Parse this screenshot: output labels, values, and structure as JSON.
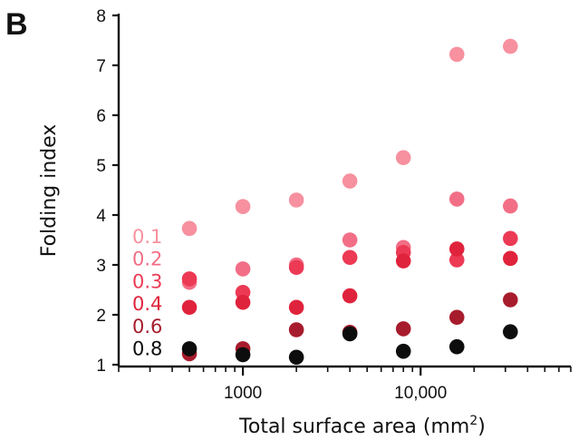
{
  "panel_label": "B",
  "chart_data": {
    "type": "scatter",
    "xlabel": "Total surface area (mm",
    "xlabel_superscript": "2",
    "xlabel_close": ")",
    "ylabel": "Folding index",
    "xscale": "log",
    "xlim": [
      200,
      70000
    ],
    "ylim": [
      1,
      8
    ],
    "x_ticks": [
      {
        "value": 1000,
        "label": "1000"
      },
      {
        "value": 10000,
        "label": "10,000"
      }
    ],
    "y_ticks": [
      {
        "value": 1,
        "label": "1"
      },
      {
        "value": 2,
        "label": "2"
      },
      {
        "value": 3,
        "label": "3"
      },
      {
        "value": 4,
        "label": "4"
      },
      {
        "value": 5,
        "label": "5"
      },
      {
        "value": 6,
        "label": "6"
      },
      {
        "value": 7,
        "label": "7"
      },
      {
        "value": 8,
        "label": "8"
      }
    ],
    "legend_position": "left, inside plot",
    "series": [
      {
        "name": "0.1",
        "color": "#f7909f",
        "x": [
          500,
          1000,
          2000,
          4000,
          8000,
          16000,
          32000
        ],
        "y": [
          3.73,
          4.17,
          4.3,
          4.68,
          5.15,
          7.22,
          7.38
        ]
      },
      {
        "name": "0.2",
        "color": "#f26e86",
        "x": [
          500,
          1000,
          2000,
          4000,
          8000,
          16000,
          32000
        ],
        "y": [
          2.65,
          2.92,
          3.0,
          3.5,
          3.35,
          4.32,
          4.18
        ]
      },
      {
        "name": "0.3",
        "color": "#ec3a55",
        "x": [
          500,
          1000,
          2000,
          4000,
          8000,
          16000,
          32000
        ],
        "y": [
          2.72,
          2.45,
          2.95,
          3.15,
          3.25,
          3.1,
          3.53
        ]
      },
      {
        "name": "0.4",
        "color": "#e0233c",
        "x": [
          500,
          1000,
          2000,
          4000,
          8000,
          16000,
          32000
        ],
        "y": [
          2.15,
          2.25,
          2.15,
          2.38,
          3.08,
          3.32,
          3.13
        ]
      },
      {
        "name": "0.6",
        "color": "#a71c2c",
        "x": [
          500,
          1000,
          2000,
          4000,
          8000,
          16000,
          32000
        ],
        "y": [
          1.22,
          1.32,
          1.7,
          1.65,
          1.72,
          1.95,
          2.3
        ]
      },
      {
        "name": "0.8",
        "color": "#0d0d0d",
        "x": [
          500,
          1000,
          2000,
          4000,
          8000,
          16000,
          32000
        ],
        "y": [
          1.32,
          1.2,
          1.15,
          1.62,
          1.27,
          1.36,
          1.66
        ]
      }
    ]
  }
}
